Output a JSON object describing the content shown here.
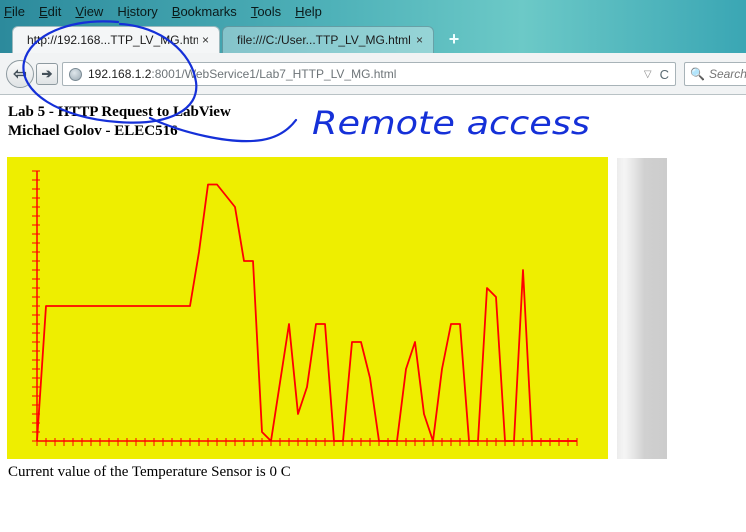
{
  "menubar": {
    "items": [
      {
        "key": "F",
        "rest": "ile"
      },
      {
        "key": "E",
        "rest": "dit"
      },
      {
        "key": "V",
        "rest": "iew"
      },
      {
        "key": "Hi",
        "rest": "story",
        "underline_index": 1
      },
      {
        "key": "B",
        "rest": "ookmarks"
      },
      {
        "key": "T",
        "rest": "ools"
      },
      {
        "key": "H",
        "rest": "elp"
      }
    ],
    "labels": [
      "File",
      "Edit",
      "View",
      "History",
      "Bookmarks",
      "Tools",
      "Help"
    ]
  },
  "tabs": [
    {
      "label": "http://192.168...TTP_LV_MG.html",
      "close": "×",
      "active": true
    },
    {
      "label": "file:///C:/User...TTP_LV_MG.html",
      "close": "×",
      "active": false
    }
  ],
  "new_tab_label": "+",
  "navbar": {
    "back_glyph": "⇦",
    "forward_glyph": "➔",
    "url_host": "192.168.1.2",
    "url_rest": ":8001/WebService1/Lab7_HTTP_LV_MG.html",
    "dropmarker": "▽",
    "reload": "C",
    "search_icon": "magnifier-icon",
    "search_glyph": "🔍",
    "search_placeholder": "Search"
  },
  "page": {
    "heading_line1": "Lab 5 - HTTP Request to LabView",
    "heading_line2": "Michael Golov - ELEC516",
    "status": "Current value of the Temperature Sensor is 0 C"
  },
  "annotation": {
    "text": "Remote access",
    "color": "#1530d8"
  },
  "colors": {
    "chart_background": "#eeee00",
    "chart_line": "#ff0000"
  },
  "chart_data": {
    "type": "line",
    "title": "",
    "xlabel": "",
    "ylabel": "",
    "xlim": [
      0,
      60
    ],
    "ylim": [
      0,
      30
    ],
    "grid": false,
    "tick_labels": false,
    "x": [
      0,
      1,
      2,
      17,
      18,
      19,
      20,
      22,
      23,
      24,
      25,
      26,
      28,
      29,
      30,
      31,
      32,
      33,
      34,
      35,
      36,
      37,
      38,
      39,
      40,
      41,
      42,
      43,
      44,
      45,
      46,
      47,
      48,
      49,
      50,
      51,
      52,
      53,
      54,
      55,
      56,
      57,
      58,
      59,
      60
    ],
    "y": [
      0,
      15,
      15,
      15,
      21,
      28.5,
      28.5,
      26,
      20,
      20,
      1,
      0,
      13,
      3,
      6,
      13,
      13,
      0,
      0,
      11,
      11,
      7,
      0,
      0,
      0,
      8,
      11,
      3,
      0,
      8,
      13,
      13,
      0,
      0,
      17,
      16,
      0,
      0,
      19,
      0,
      0,
      0,
      0,
      0,
      0
    ]
  }
}
